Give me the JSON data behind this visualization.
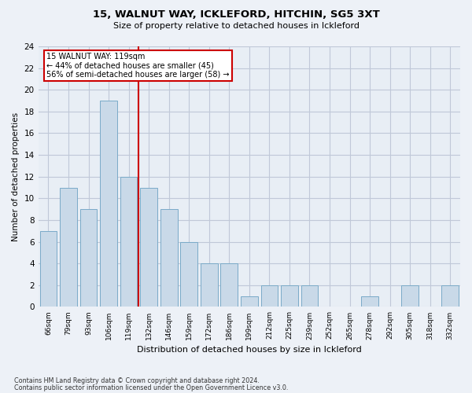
{
  "title": "15, WALNUT WAY, ICKLEFORD, HITCHIN, SG5 3XT",
  "subtitle": "Size of property relative to detached houses in Ickleford",
  "xlabel": "Distribution of detached houses by size in Ickleford",
  "ylabel": "Number of detached properties",
  "categories": [
    "66sqm",
    "79sqm",
    "93sqm",
    "106sqm",
    "119sqm",
    "132sqm",
    "146sqm",
    "159sqm",
    "172sqm",
    "186sqm",
    "199sqm",
    "212sqm",
    "225sqm",
    "239sqm",
    "252sqm",
    "265sqm",
    "278sqm",
    "292sqm",
    "305sqm",
    "318sqm",
    "332sqm"
  ],
  "values": [
    7,
    11,
    9,
    19,
    12,
    11,
    9,
    6,
    4,
    4,
    1,
    2,
    2,
    2,
    0,
    0,
    1,
    0,
    2,
    0,
    2
  ],
  "bar_color": "#c9d9e8",
  "bar_edge_color": "#7aaac8",
  "marker_line_index": 4,
  "marker_label": "15 WALNUT WAY: 119sqm",
  "annotation_line1": "← 44% of detached houses are smaller (45)",
  "annotation_line2": "56% of semi-detached houses are larger (58) →",
  "annotation_box_color": "#cc0000",
  "ylim": [
    0,
    24
  ],
  "yticks": [
    0,
    2,
    4,
    6,
    8,
    10,
    12,
    14,
    16,
    18,
    20,
    22,
    24
  ],
  "grid_color": "#c0c8d8",
  "plot_bg_color": "#e8eef5",
  "fig_bg_color": "#edf1f7",
  "footer1": "Contains HM Land Registry data © Crown copyright and database right 2024.",
  "footer2": "Contains public sector information licensed under the Open Government Licence v3.0."
}
